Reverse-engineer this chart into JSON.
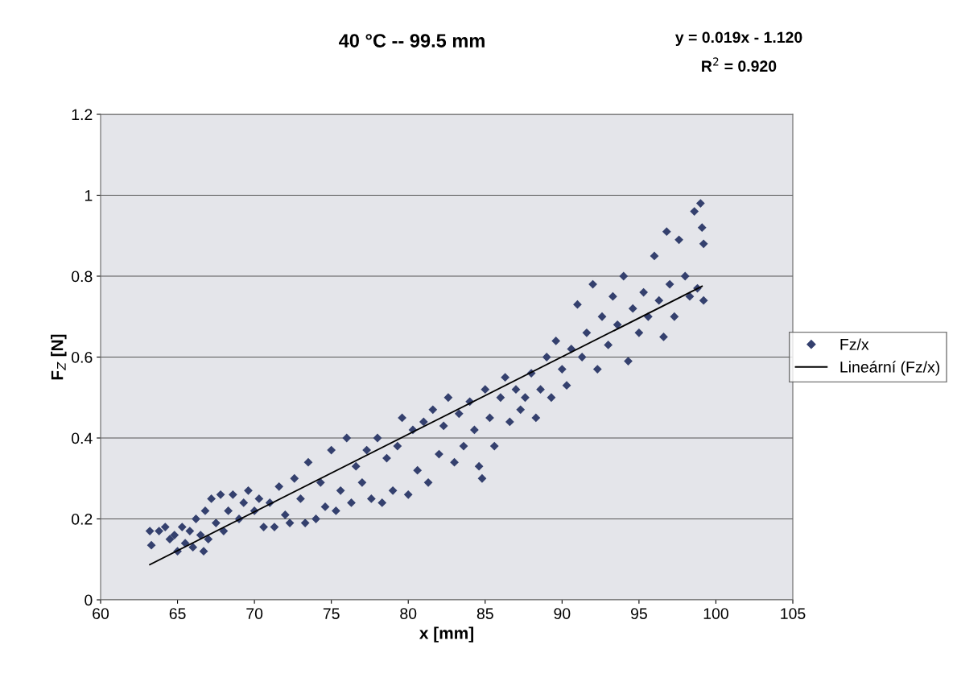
{
  "chart_data": {
    "type": "scatter",
    "title": "40 °C -- 99.5 mm",
    "xlabel": "x [mm]",
    "ylabel": "F$_{Z}$ [N]",
    "annotations": [
      "y = 0.019x - 1.120",
      "R$^{2}$ = 0.920"
    ],
    "xlim": [
      60,
      105
    ],
    "xticks": [
      60,
      65,
      70,
      75,
      80,
      85,
      90,
      95,
      100,
      105
    ],
    "ylim": [
      0,
      1.2
    ],
    "yticks": [
      0,
      0.2,
      0.4,
      0.6,
      0.8,
      1,
      1.2
    ],
    "grid": "y",
    "legend": "right",
    "series": [
      {
        "name": "Fz/x",
        "marker": "diamond",
        "color": "#34406e",
        "x": [
          63.2,
          63.3,
          63.8,
          64.2,
          64.5,
          64.8,
          65.0,
          65.3,
          65.5,
          65.8,
          66.0,
          66.2,
          66.5,
          66.7,
          66.8,
          67.0,
          67.2,
          67.5,
          67.8,
          68.0,
          68.3,
          68.6,
          69.0,
          69.3,
          69.6,
          70.0,
          70.3,
          70.6,
          71.0,
          71.3,
          71.6,
          72.0,
          72.3,
          72.6,
          73.0,
          73.3,
          73.5,
          74.0,
          74.3,
          74.6,
          75.0,
          75.3,
          75.6,
          76.0,
          76.3,
          76.6,
          77.0,
          77.3,
          77.6,
          78.0,
          78.3,
          78.6,
          79.0,
          79.3,
          79.6,
          80.0,
          80.3,
          80.6,
          81.0,
          81.3,
          81.6,
          82.0,
          82.3,
          82.6,
          83.0,
          83.3,
          83.6,
          84.0,
          84.3,
          84.6,
          84.8,
          85.0,
          85.3,
          85.6,
          86.0,
          86.3,
          86.6,
          87.0,
          87.3,
          87.6,
          88.0,
          88.3,
          88.6,
          89.0,
          89.3,
          89.6,
          90.0,
          90.3,
          90.6,
          91.0,
          91.3,
          91.6,
          92.0,
          92.3,
          92.6,
          93.0,
          93.3,
          93.6,
          94.0,
          94.3,
          94.6,
          95.0,
          95.3,
          95.6,
          96.0,
          96.3,
          96.6,
          96.8,
          97.0,
          97.3,
          97.6,
          98.0,
          98.3,
          98.6,
          98.8,
          99.0,
          99.1,
          99.2,
          99.2
        ],
        "values": [
          0.17,
          0.135,
          0.17,
          0.18,
          0.15,
          0.16,
          0.12,
          0.18,
          0.14,
          0.17,
          0.13,
          0.2,
          0.16,
          0.12,
          0.22,
          0.15,
          0.25,
          0.19,
          0.26,
          0.17,
          0.22,
          0.26,
          0.2,
          0.24,
          0.27,
          0.22,
          0.25,
          0.18,
          0.24,
          0.18,
          0.28,
          0.21,
          0.19,
          0.3,
          0.25,
          0.19,
          0.34,
          0.2,
          0.29,
          0.23,
          0.37,
          0.22,
          0.27,
          0.4,
          0.24,
          0.33,
          0.29,
          0.37,
          0.25,
          0.4,
          0.24,
          0.35,
          0.27,
          0.38,
          0.45,
          0.26,
          0.42,
          0.32,
          0.44,
          0.29,
          0.47,
          0.36,
          0.43,
          0.5,
          0.34,
          0.46,
          0.38,
          0.49,
          0.42,
          0.33,
          0.3,
          0.52,
          0.45,
          0.38,
          0.5,
          0.55,
          0.44,
          0.52,
          0.47,
          0.5,
          0.56,
          0.45,
          0.52,
          0.6,
          0.5,
          0.64,
          0.57,
          0.53,
          0.62,
          0.73,
          0.6,
          0.66,
          0.78,
          0.57,
          0.7,
          0.63,
          0.75,
          0.68,
          0.8,
          0.59,
          0.72,
          0.66,
          0.76,
          0.7,
          0.85,
          0.74,
          0.65,
          0.91,
          0.78,
          0.7,
          0.89,
          0.8,
          0.75,
          0.96,
          0.77,
          0.98,
          0.92,
          0.74,
          0.88
        ]
      },
      {
        "name": "Lineární (Fz/x)",
        "type": "line",
        "color": "#000000",
        "x": [
          63.2,
          99.1
        ],
        "values": [
          0.087,
          0.775
        ]
      }
    ]
  }
}
